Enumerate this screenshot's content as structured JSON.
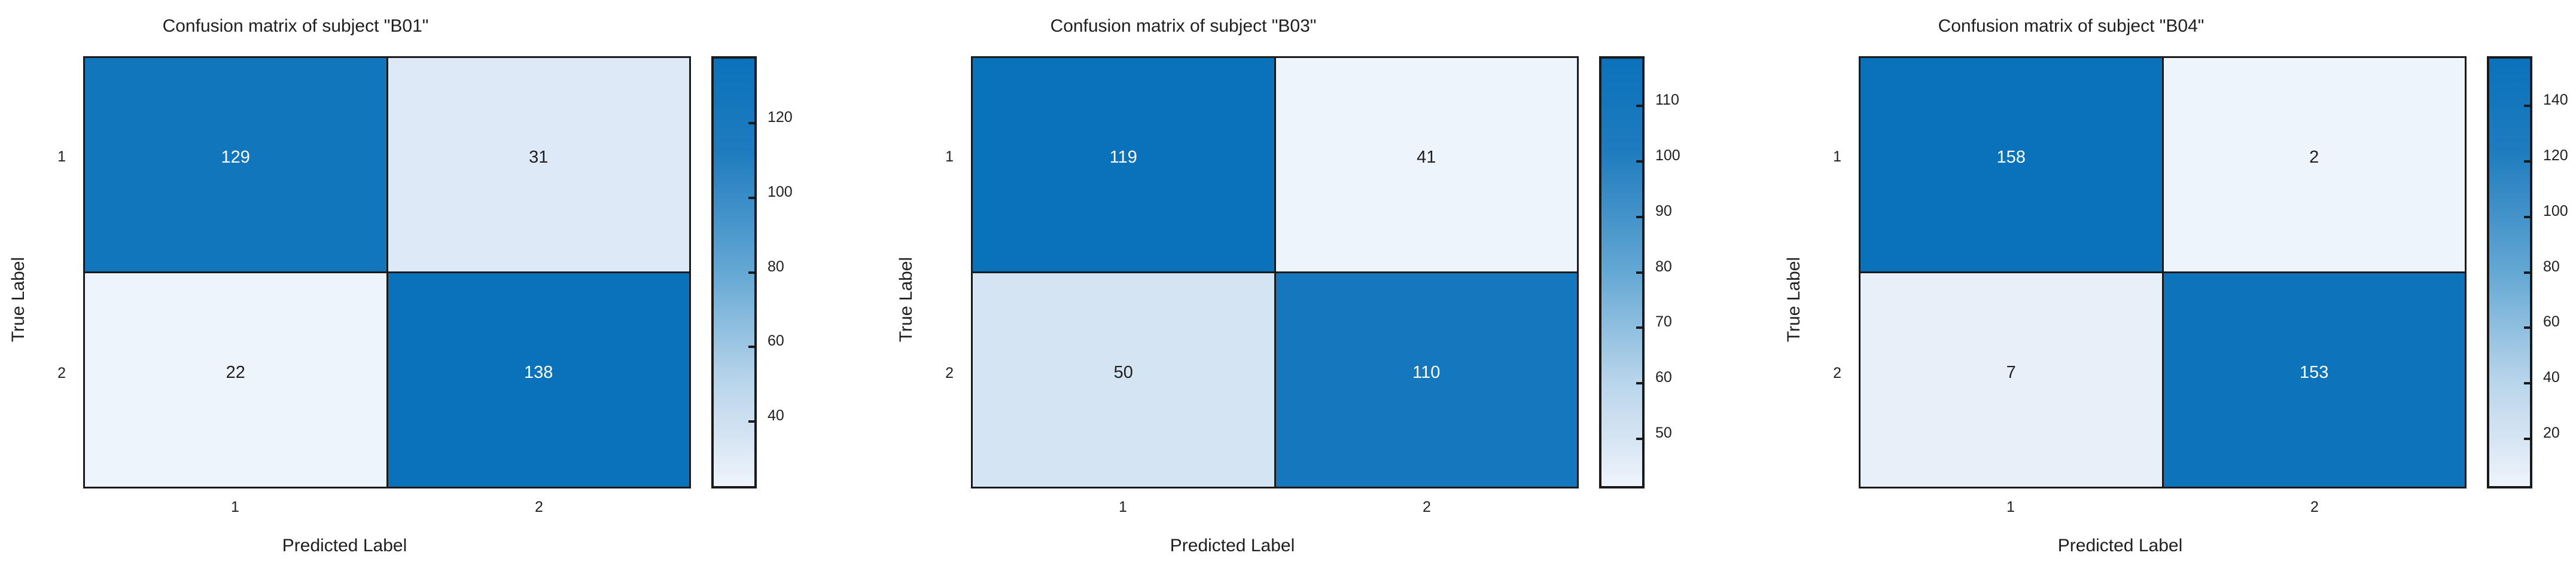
{
  "figure": {
    "background": "#ffffff",
    "text_color": "#1f1f1f",
    "border_color": "#1a1a1a"
  },
  "colormap": {
    "name": "Blues",
    "stops": [
      [
        0.0,
        "#eef4fb"
      ],
      [
        0.1,
        "#d8e6f4"
      ],
      [
        0.25,
        "#b7d4ea"
      ],
      [
        0.5,
        "#64a8d4"
      ],
      [
        0.78,
        "#1f7cbe"
      ],
      [
        1.0,
        "#0a72bb"
      ]
    ]
  },
  "chart_data": [
    {
      "type": "heatmap",
      "title": "Confusion matrix of subject \"B01\"",
      "xlabel": "Predicted Label",
      "ylabel": "True Label",
      "x_ticklabels": [
        "1",
        "2"
      ],
      "y_ticklabels": [
        "1",
        "2"
      ],
      "matrix": [
        [
          129,
          31
        ],
        [
          22,
          138
        ]
      ],
      "vmin": 22,
      "vmax": 138,
      "colorbar_ticks": [
        40,
        60,
        80,
        100,
        120
      ],
      "colormap": "Blues",
      "colorbar_position": "right",
      "grid": false
    },
    {
      "type": "heatmap",
      "title": "Confusion matrix of subject \"B03\"",
      "xlabel": "Predicted Label",
      "ylabel": "True Label",
      "x_ticklabels": [
        "1",
        "2"
      ],
      "y_ticklabels": [
        "1",
        "2"
      ],
      "matrix": [
        [
          119,
          41
        ],
        [
          50,
          110
        ]
      ],
      "vmin": 41,
      "vmax": 119,
      "colorbar_ticks": [
        50,
        60,
        70,
        80,
        90,
        100,
        110
      ],
      "colormap": "Blues",
      "colorbar_position": "right",
      "grid": false
    },
    {
      "type": "heatmap",
      "title": "Confusion matrix of subject \"B04\"",
      "xlabel": "Predicted Label",
      "ylabel": "True Label",
      "x_ticklabels": [
        "1",
        "2"
      ],
      "y_ticklabels": [
        "1",
        "2"
      ],
      "matrix": [
        [
          158,
          2
        ],
        [
          7,
          153
        ]
      ],
      "vmin": 2,
      "vmax": 158,
      "colorbar_ticks": [
        20,
        40,
        60,
        80,
        100,
        120,
        140
      ],
      "colormap": "Blues",
      "colorbar_position": "right",
      "grid": false
    }
  ]
}
